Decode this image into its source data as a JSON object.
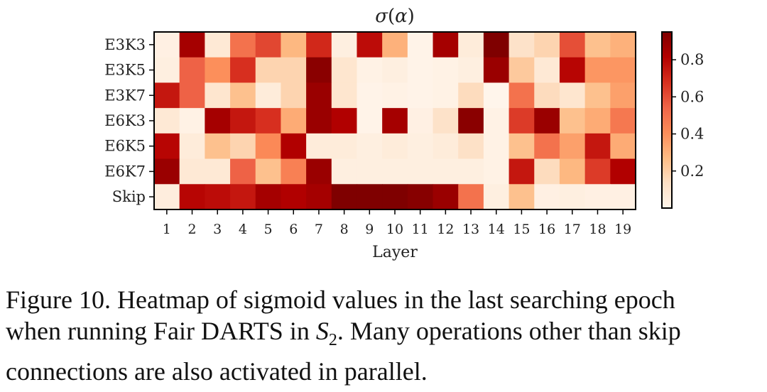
{
  "chart_data": {
    "type": "heatmap",
    "title_symbol": "σ",
    "title_var": "α",
    "title": "σ(α)",
    "xlabel": "Layer",
    "ylabel": "",
    "x_categories": [
      "1",
      "2",
      "3",
      "4",
      "5",
      "6",
      "7",
      "8",
      "9",
      "10",
      "11",
      "12",
      "13",
      "14",
      "15",
      "16",
      "17",
      "18",
      "19"
    ],
    "y_categories": [
      "E3K3",
      "E3K5",
      "E3K7",
      "E6K3",
      "E6K5",
      "E6K7",
      "Skip"
    ],
    "value_range": [
      0.0,
      0.95
    ],
    "colormap": [
      "#fff5eb",
      "#fde0c5",
      "#fdbb84",
      "#fc8d59",
      "#ef6548",
      "#d7301f",
      "#b30000",
      "#7f0000"
    ],
    "colorbar_ticks": [
      "0.2",
      "0.4",
      "0.6",
      "0.8"
    ],
    "colorbar_tick_values": [
      0.2,
      0.4,
      0.6,
      0.8
    ],
    "values": [
      [
        0.03,
        0.85,
        0.08,
        0.5,
        0.62,
        0.28,
        0.7,
        0.04,
        0.78,
        0.3,
        0.01,
        0.85,
        0.06,
        0.95,
        0.12,
        0.18,
        0.6,
        0.25,
        0.3
      ],
      [
        0.04,
        0.55,
        0.4,
        0.68,
        0.18,
        0.18,
        0.92,
        0.1,
        0.02,
        0.04,
        0.01,
        0.02,
        0.04,
        0.88,
        0.22,
        0.08,
        0.8,
        0.38,
        0.38
      ],
      [
        0.75,
        0.55,
        0.1,
        0.25,
        0.06,
        0.18,
        0.88,
        0.1,
        0.01,
        0.02,
        0.01,
        0.02,
        0.15,
        0.0,
        0.5,
        0.15,
        0.1,
        0.25,
        0.35
      ],
      [
        0.08,
        0.02,
        0.85,
        0.75,
        0.68,
        0.32,
        0.88,
        0.82,
        0.01,
        0.85,
        0.03,
        0.12,
        0.92,
        0.02,
        0.65,
        0.88,
        0.25,
        0.32,
        0.48
      ],
      [
        0.8,
        0.06,
        0.25,
        0.18,
        0.42,
        0.82,
        0.06,
        0.06,
        0.04,
        0.06,
        0.04,
        0.06,
        0.13,
        0.02,
        0.25,
        0.5,
        0.35,
        0.75,
        0.32
      ],
      [
        0.88,
        0.08,
        0.08,
        0.55,
        0.25,
        0.45,
        0.88,
        0.04,
        0.04,
        0.04,
        0.04,
        0.04,
        0.04,
        0.02,
        0.75,
        0.15,
        0.28,
        0.65,
        0.82
      ],
      [
        0.05,
        0.8,
        0.78,
        0.75,
        0.85,
        0.82,
        0.85,
        0.95,
        0.95,
        0.95,
        0.93,
        0.88,
        0.5,
        0.04,
        0.25,
        0.03,
        0.04,
        0.03,
        0.03
      ]
    ]
  },
  "caption": {
    "line1": "Figure 10. Heatmap of sigmoid values in the last searching epoch",
    "line2_pre": "when running Fair DARTS in ",
    "line2_math": "S",
    "line2_sub": "2",
    "line2_post": ". Many operations other than skip",
    "line3": "connections are also activated in parallel."
  }
}
